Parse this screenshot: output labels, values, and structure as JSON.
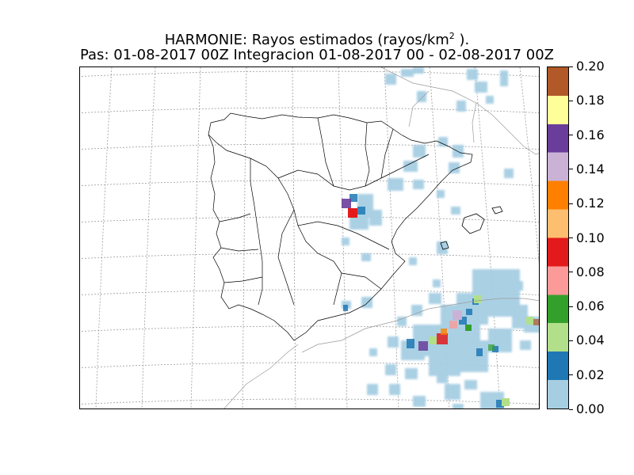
{
  "title": {
    "line1_prefix": "HARMONIE: Rayos estimados  (rayos/km",
    "line1_sup": "2",
    "line1_suffix": " ).",
    "line2": "Pas: 01-08-2017 00Z Integracion 01-08-2017 00 - 02-08-2017 00Z"
  },
  "colorbar": {
    "min": 0.0,
    "max": 0.2,
    "ticks": [
      "0.00",
      "0.02",
      "0.04",
      "0.06",
      "0.08",
      "0.10",
      "0.12",
      "0.14",
      "0.16",
      "0.18",
      "0.20"
    ],
    "colors": [
      "#a6cee3",
      "#1f78b4",
      "#b2df8a",
      "#33a02c",
      "#fb9a99",
      "#e31a1c",
      "#fdbf6f",
      "#ff7f00",
      "#cab2d6",
      "#6a3d9a",
      "#ffff99",
      "#b15928"
    ]
  },
  "map": {
    "region": "Iberian Peninsula and Balearic Islands",
    "coastline_color": "#000000",
    "graticule_color": "#9a9a9a"
  }
}
